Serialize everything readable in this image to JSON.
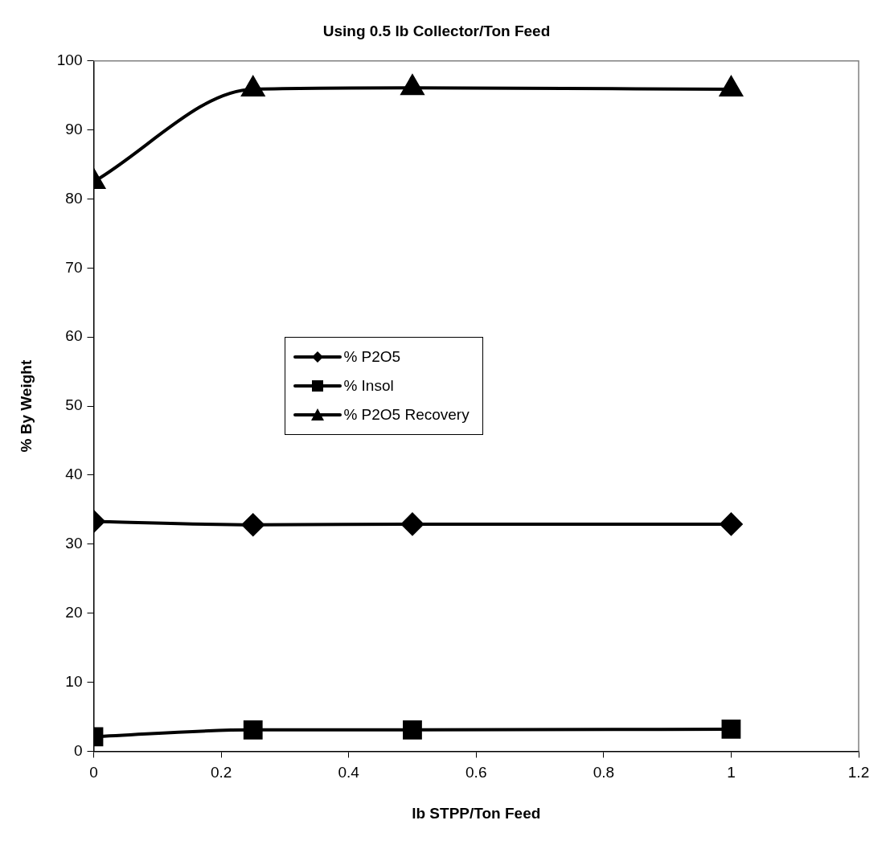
{
  "chart_data": {
    "type": "line",
    "title": "Using 0.5 lb Collector/Ton Feed",
    "xlabel": "lb STPP/Ton Feed",
    "ylabel": "% By Weight",
    "x": [
      0,
      0.25,
      0.5,
      1
    ],
    "series": [
      {
        "name": "% P2O5",
        "color": "#000000",
        "marker": "diamond",
        "values": [
          33.3,
          32.8,
          32.9,
          32.9
        ]
      },
      {
        "name": "% Insol",
        "color": "#000000",
        "marker": "square",
        "values": [
          2.1,
          3.1,
          3.1,
          3.2
        ]
      },
      {
        "name": "% P2O5 Recovery",
        "color": "#000000",
        "marker": "triangle",
        "values": [
          82.5,
          95.9,
          96.1,
          95.9
        ]
      }
    ],
    "xlim": [
      0,
      1.2
    ],
    "xticks": [
      0,
      0.2,
      0.4,
      0.6,
      0.8,
      1,
      1.2
    ],
    "ylim": [
      0,
      100
    ],
    "yticks": [
      0,
      10,
      20,
      30,
      40,
      50,
      60,
      70,
      80,
      90,
      100
    ],
    "grid": false,
    "legend": "center left",
    "line_style": "solid"
  }
}
